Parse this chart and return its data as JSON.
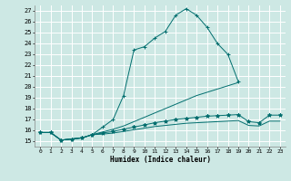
{
  "title": "",
  "xlabel": "Humidex (Indice chaleur)",
  "ylabel": "",
  "bg_color": "#cde8e4",
  "grid_color": "#ffffff",
  "line_color": "#006e6e",
  "xlim": [
    -0.5,
    23.5
  ],
  "ylim": [
    14.5,
    27.5
  ],
  "yticks": [
    15,
    16,
    17,
    18,
    19,
    20,
    21,
    22,
    23,
    24,
    25,
    26,
    27
  ],
  "xticks": [
    0,
    1,
    2,
    3,
    4,
    5,
    6,
    7,
    8,
    9,
    10,
    11,
    12,
    13,
    14,
    15,
    16,
    17,
    18,
    19,
    20,
    21,
    22,
    23
  ],
  "series": [
    {
      "x": [
        0,
        1,
        2,
        3,
        4,
        5,
        6,
        7,
        8,
        9,
        10,
        11,
        12,
        13,
        14,
        15,
        16,
        17,
        18,
        19
      ],
      "y": [
        15.8,
        15.8,
        15.1,
        15.2,
        15.3,
        15.6,
        16.3,
        17.0,
        19.2,
        23.4,
        23.7,
        24.5,
        25.1,
        26.6,
        27.2,
        26.6,
        25.5,
        24.0,
        23.0,
        20.5
      ],
      "marker": "+"
    },
    {
      "x": [
        0,
        1,
        2,
        3,
        4,
        5,
        6,
        7,
        8,
        9,
        10,
        11,
        12,
        13,
        14,
        15,
        16,
        17,
        18,
        19
      ],
      "y": [
        15.8,
        15.8,
        15.1,
        15.2,
        15.3,
        15.6,
        15.85,
        16.1,
        16.4,
        16.8,
        17.2,
        17.6,
        18.0,
        18.4,
        18.8,
        19.2,
        19.5,
        19.8,
        20.1,
        20.4
      ],
      "marker": null
    },
    {
      "x": [
        0,
        1,
        2,
        3,
        4,
        5,
        6,
        7,
        8,
        9,
        10,
        11,
        12,
        13,
        14,
        15,
        16,
        17,
        18,
        19,
        20,
        21,
        22,
        23
      ],
      "y": [
        15.8,
        15.8,
        15.1,
        15.2,
        15.3,
        15.6,
        15.75,
        15.9,
        16.1,
        16.3,
        16.5,
        16.7,
        16.85,
        17.0,
        17.1,
        17.2,
        17.3,
        17.35,
        17.4,
        17.45,
        16.8,
        16.7,
        17.4,
        17.4
      ],
      "marker": "*"
    },
    {
      "x": [
        0,
        1,
        2,
        3,
        4,
        5,
        6,
        7,
        8,
        9,
        10,
        11,
        12,
        13,
        14,
        15,
        16,
        17,
        18,
        19,
        20,
        21,
        22,
        23
      ],
      "y": [
        15.8,
        15.8,
        15.1,
        15.2,
        15.3,
        15.6,
        15.65,
        15.75,
        15.9,
        16.05,
        16.2,
        16.35,
        16.45,
        16.55,
        16.65,
        16.7,
        16.75,
        16.8,
        16.85,
        16.9,
        16.45,
        16.4,
        16.85,
        16.85
      ],
      "marker": null
    }
  ]
}
